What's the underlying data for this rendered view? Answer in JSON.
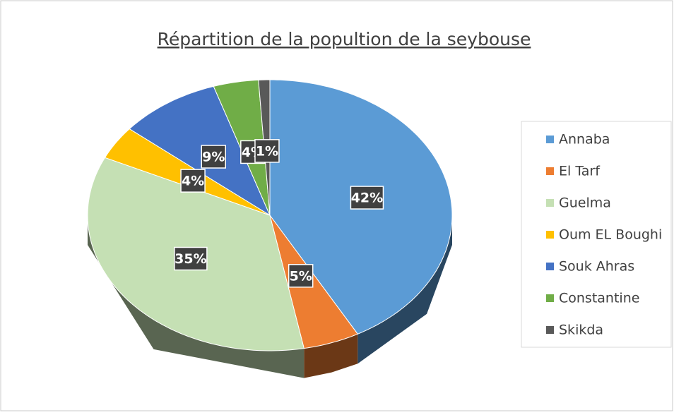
{
  "chart_data": {
    "type": "pie",
    "title": "Répartition de la popultion de la seybouse",
    "categories": [
      "Annaba",
      "El Tarf",
      "Guelma",
      "Oum EL Boughi",
      "Souk Ahras",
      "Constantine",
      "Skikda"
    ],
    "values": [
      42,
      5,
      35,
      4,
      9,
      4,
      1
    ],
    "value_labels": [
      "42%",
      "5%",
      "35%",
      "4%",
      "9%",
      "4%",
      "1%"
    ],
    "colors": [
      "#5b9bd5",
      "#ed7d31",
      "#c5e0b4",
      "#ffc000",
      "#4472c4",
      "#70ad47",
      "#595959"
    ],
    "legend": "right",
    "three_d": true
  }
}
